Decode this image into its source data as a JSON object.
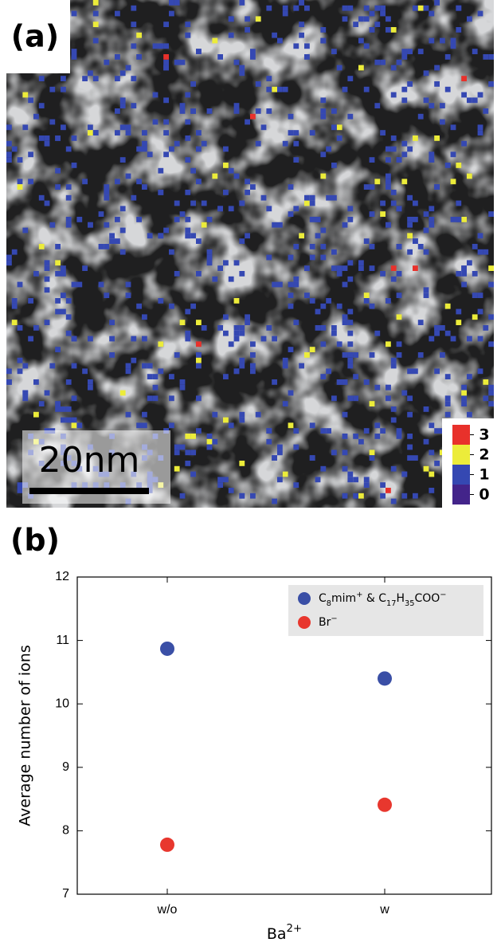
{
  "panel_a": {
    "label": "(a)",
    "scale_bar": "20nm",
    "colorbar": {
      "ticks": [
        3,
        2,
        1,
        0
      ],
      "colors": [
        "#e8312b",
        "#ecec3a",
        "#3548b2",
        "#43248a"
      ]
    }
  },
  "chart_data": {
    "type": "scatter",
    "label": "(b)",
    "categories": [
      "w/o",
      "w"
    ],
    "series": [
      {
        "name": "C8mim+ & C17H35COO−",
        "color": "#3a4fa6",
        "values": [
          10.87,
          10.4
        ]
      },
      {
        "name": "Br−",
        "color": "#e8372e",
        "values": [
          7.78,
          8.41
        ]
      }
    ],
    "ylim": [
      7,
      12
    ],
    "yticks": [
      7,
      8,
      9,
      10,
      11,
      12
    ],
    "xlabel": "Ba2+",
    "ylabel": "Average number of ions",
    "legend": "upper right"
  }
}
